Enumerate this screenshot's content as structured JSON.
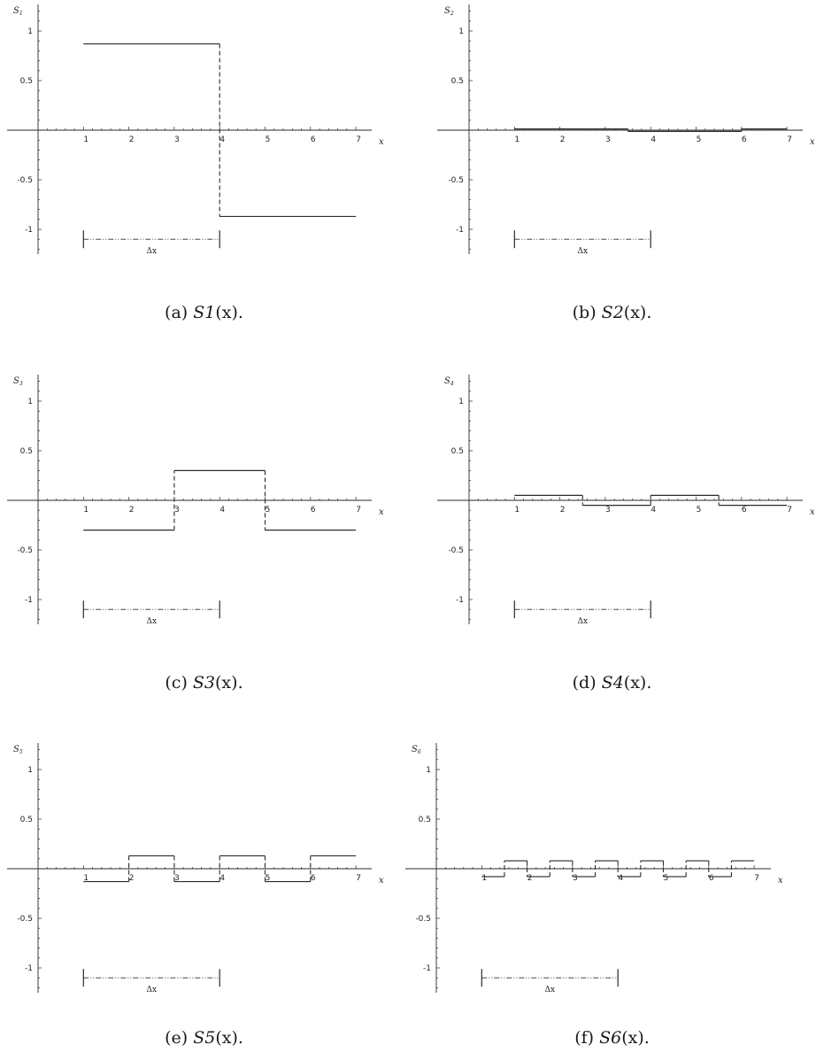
{
  "chart_data": [
    {
      "id": "a",
      "type": "line",
      "ylabel": "S",
      "ylabel_sub": "1",
      "xlabel": "x",
      "caption_prefix": "(a)",
      "caption_func": "S1",
      "caption_arg": "(x)",
      "caption_suffix": ".",
      "xlim": [
        0,
        7
      ],
      "ylim": [
        -1.25,
        1.25
      ],
      "x_ticks": [
        "1",
        "2",
        "3",
        "4",
        "5",
        "6",
        "7"
      ],
      "y_ticks": [
        "1",
        "0.5",
        "-0.5",
        "-1"
      ],
      "segments": [
        {
          "x0": 1,
          "x1": 4,
          "y": 0.87
        },
        {
          "x0": 4,
          "x1": 7,
          "y": -0.87
        }
      ],
      "delta": {
        "label": "Δx",
        "x0": 1,
        "x1": 4,
        "y": -1.1
      }
    },
    {
      "id": "b",
      "type": "line",
      "ylabel": "S",
      "ylabel_sub": "2",
      "xlabel": "x",
      "caption_prefix": "(b)",
      "caption_func": "S2",
      "caption_arg": "(x)",
      "caption_suffix": ".",
      "xlim": [
        0,
        7
      ],
      "ylim": [
        -1.25,
        1.25
      ],
      "x_ticks": [
        "1",
        "2",
        "3",
        "4",
        "5",
        "6",
        "7"
      ],
      "y_ticks": [
        "1",
        "0.5",
        "-0.5",
        "-1"
      ],
      "segments": [
        {
          "x0": 1,
          "x1": 3.5,
          "y": 0.012
        },
        {
          "x0": 3.5,
          "x1": 6,
          "y": -0.012
        },
        {
          "x0": 6,
          "x1": 7,
          "y": 0.012
        }
      ],
      "delta": {
        "label": "Δx",
        "x0": 1,
        "x1": 4,
        "y": -1.1
      }
    },
    {
      "id": "c",
      "type": "line",
      "ylabel": "S",
      "ylabel_sub": "3",
      "xlabel": "x",
      "caption_prefix": "(c)",
      "caption_func": "S3",
      "caption_arg": "(x)",
      "caption_suffix": ".",
      "xlim": [
        0,
        7
      ],
      "ylim": [
        -1.25,
        1.25
      ],
      "x_ticks": [
        "1",
        "2",
        "3",
        "4",
        "5",
        "6",
        "7"
      ],
      "y_ticks": [
        "1",
        "0.5",
        "-0.5",
        "-1"
      ],
      "segments": [
        {
          "x0": 1,
          "x1": 3,
          "y": -0.3
        },
        {
          "x0": 3,
          "x1": 5,
          "y": 0.3
        },
        {
          "x0": 5,
          "x1": 7,
          "y": -0.3
        }
      ],
      "delta": {
        "label": "Δx",
        "x0": 1,
        "x1": 4,
        "y": -1.1
      }
    },
    {
      "id": "d",
      "type": "line",
      "ylabel": "S",
      "ylabel_sub": "4",
      "xlabel": "x",
      "caption_prefix": "(d)",
      "caption_func": "S4",
      "caption_arg": "(x)",
      "caption_suffix": ".",
      "xlim": [
        0,
        7
      ],
      "ylim": [
        -1.25,
        1.25
      ],
      "x_ticks": [
        "1",
        "2",
        "3",
        "4",
        "5",
        "6",
        "7"
      ],
      "y_ticks": [
        "1",
        "0.5",
        "-0.5",
        "-1"
      ],
      "segments": [
        {
          "x0": 1,
          "x1": 2.5,
          "y": 0.05
        },
        {
          "x0": 2.5,
          "x1": 4,
          "y": -0.05
        },
        {
          "x0": 4,
          "x1": 5.5,
          "y": 0.05
        },
        {
          "x0": 5.5,
          "x1": 7,
          "y": -0.05
        }
      ],
      "delta": {
        "label": "Δx",
        "x0": 1,
        "x1": 4,
        "y": -1.1
      }
    },
    {
      "id": "e",
      "type": "line",
      "ylabel": "S",
      "ylabel_sub": "5",
      "xlabel": "x",
      "caption_prefix": "(e)",
      "caption_func": "S5",
      "caption_arg": "(x)",
      "caption_suffix": ".",
      "xlim": [
        0,
        7
      ],
      "ylim": [
        -1.25,
        1.25
      ],
      "x_ticks": [
        "1",
        "2",
        "3",
        "4",
        "5",
        "6",
        "7"
      ],
      "y_ticks": [
        "1",
        "0.5",
        "-0.5",
        "-1"
      ],
      "segments": [
        {
          "x0": 1,
          "x1": 2,
          "y": -0.13
        },
        {
          "x0": 2,
          "x1": 3,
          "y": 0.13
        },
        {
          "x0": 3,
          "x1": 4,
          "y": -0.13
        },
        {
          "x0": 4,
          "x1": 5,
          "y": 0.13
        },
        {
          "x0": 5,
          "x1": 6,
          "y": -0.13
        },
        {
          "x0": 6,
          "x1": 7,
          "y": 0.13
        }
      ],
      "delta": {
        "label": "Δx",
        "x0": 1,
        "x1": 4,
        "y": -1.1
      }
    },
    {
      "id": "f",
      "type": "line",
      "ylabel": "S",
      "ylabel_sub": "6",
      "xlabel": "x",
      "caption_prefix": "(f)",
      "caption_func": "S6",
      "caption_arg": "(x)",
      "caption_suffix": ".",
      "xlim": [
        0,
        7
      ],
      "ylim": [
        -1.25,
        1.25
      ],
      "x_ticks": [
        "1",
        "2",
        "3",
        "4",
        "5",
        "6",
        "7"
      ],
      "y_ticks": [
        "1",
        "0.5",
        "-0.5",
        "-1"
      ],
      "segments": [
        {
          "x0": 1,
          "x1": 1.5,
          "y": -0.08
        },
        {
          "x0": 1.5,
          "x1": 2,
          "y": 0.08
        },
        {
          "x0": 2,
          "x1": 2.5,
          "y": -0.08
        },
        {
          "x0": 2.5,
          "x1": 3,
          "y": 0.08
        },
        {
          "x0": 3,
          "x1": 3.5,
          "y": -0.08
        },
        {
          "x0": 3.5,
          "x1": 4,
          "y": 0.08
        },
        {
          "x0": 4,
          "x1": 4.5,
          "y": -0.08
        },
        {
          "x0": 4.5,
          "x1": 5,
          "y": 0.08
        },
        {
          "x0": 5,
          "x1": 5.5,
          "y": -0.08
        },
        {
          "x0": 5.5,
          "x1": 6,
          "y": 0.08
        },
        {
          "x0": 6,
          "x1": 6.5,
          "y": -0.08
        },
        {
          "x0": 6.5,
          "x1": 7,
          "y": 0.08
        }
      ],
      "delta": {
        "label": "Δx",
        "x0": 1,
        "x1": 4,
        "y": -1.1
      }
    }
  ]
}
